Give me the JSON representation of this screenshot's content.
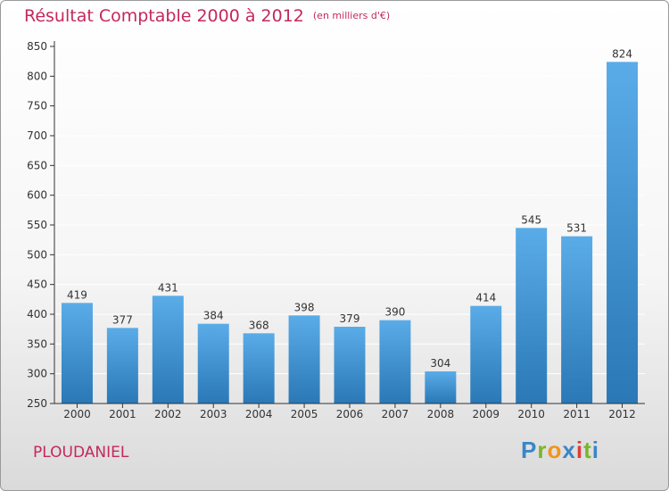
{
  "header": {
    "title": "Résultat Comptable 2000 à 2012",
    "unit": "(en milliers d'€)"
  },
  "footer": {
    "commune": "PLOUDANIEL",
    "logo": {
      "letters": [
        "P",
        "r",
        "o",
        "x",
        "i",
        "t",
        "i"
      ],
      "colors": [
        "#3a86c9",
        "#7bb52c",
        "#f0961b",
        "#3a86c9",
        "#e23a3a",
        "#7bb52c",
        "#3a86c9"
      ]
    }
  },
  "colors": {
    "title": "#c4285c",
    "bar_top": "#5aace8",
    "bar_bottom": "#2a78b6",
    "axis": "#333333",
    "grid": "#ffffff"
  },
  "chart_data": {
    "type": "bar",
    "categories": [
      "2000",
      "2001",
      "2002",
      "2003",
      "2004",
      "2005",
      "2006",
      "2007",
      "2008",
      "2009",
      "2010",
      "2011",
      "2012"
    ],
    "values": [
      419,
      377,
      431,
      384,
      368,
      398,
      379,
      390,
      304,
      414,
      545,
      531,
      824
    ],
    "data_labels": [
      "419",
      "377",
      "431",
      "384",
      "368",
      "398",
      "379",
      "390",
      "304",
      "414",
      "545",
      "531",
      "824"
    ],
    "ylim": [
      250,
      850
    ],
    "yticks": [
      "250",
      "300",
      "350",
      "400",
      "450",
      "500",
      "550",
      "600",
      "650",
      "700",
      "750",
      "800",
      "850"
    ],
    "grid": true,
    "legend": false
  }
}
